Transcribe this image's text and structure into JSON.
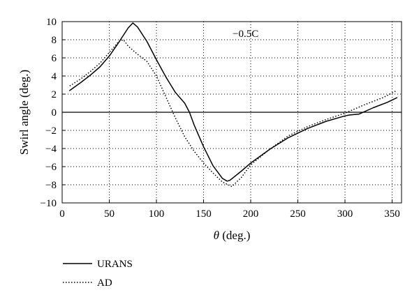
{
  "chart_data": {
    "type": "line",
    "title": "",
    "annotation": "−0.5C",
    "xlabel_symbol": "θ",
    "xlabel_unit": " (deg.)",
    "ylabel": "Swirl angle (deg.)",
    "xlim": [
      0,
      360
    ],
    "ylim": [
      -10,
      10
    ],
    "x_ticks": [
      0,
      50,
      100,
      150,
      200,
      250,
      300,
      350
    ],
    "x_tick_labels": [
      "0",
      "50",
      "100",
      "150",
      "200",
      "250",
      "300",
      "350"
    ],
    "y_ticks": [
      -10,
      -8,
      -6,
      -4,
      -2,
      0,
      2,
      4,
      6,
      8,
      10
    ],
    "y_tick_labels": [
      "−10",
      "−8",
      "−6",
      "−4",
      "−2",
      "0",
      "2",
      "4",
      "6",
      "8",
      "10"
    ],
    "grid": true,
    "legend_position": "bottom-left, below plot",
    "series": [
      {
        "name": "URANS",
        "style": "solid",
        "color": "#000000",
        "x": [
          8,
          20,
          30,
          40,
          50,
          60,
          70,
          75,
          80,
          90,
          100,
          110,
          120,
          130,
          135,
          140,
          150,
          160,
          170,
          175,
          178,
          190,
          200,
          220,
          240,
          260,
          280,
          300,
          305,
          315,
          330,
          345,
          355
        ],
        "y": [
          2.4,
          3.3,
          4.1,
          5.0,
          6.2,
          7.7,
          9.3,
          9.85,
          9.4,
          7.8,
          5.8,
          3.9,
          2.2,
          1.0,
          0.0,
          -1.4,
          -3.8,
          -5.9,
          -7.3,
          -7.6,
          -7.5,
          -6.5,
          -5.6,
          -4.1,
          -2.8,
          -1.8,
          -1.0,
          -0.4,
          -0.3,
          -0.2,
          0.5,
          1.1,
          1.6
        ]
      },
      {
        "name": "AD",
        "style": "dotted",
        "color": "#000000",
        "x": [
          8,
          20,
          30,
          40,
          50,
          60,
          65,
          70,
          80,
          90,
          100,
          110,
          120,
          130,
          140,
          150,
          160,
          170,
          180,
          190,
          200,
          220,
          240,
          260,
          280,
          300,
          320,
          340,
          355
        ],
        "y": [
          2.9,
          3.7,
          4.5,
          5.4,
          6.6,
          7.8,
          8.0,
          7.3,
          6.4,
          5.6,
          4.0,
          1.7,
          -0.6,
          -2.7,
          -4.3,
          -5.6,
          -6.7,
          -7.7,
          -8.2,
          -7.2,
          -5.8,
          -4.1,
          -2.6,
          -1.6,
          -0.8,
          -0.1,
          0.8,
          1.6,
          2.4
        ]
      }
    ]
  }
}
